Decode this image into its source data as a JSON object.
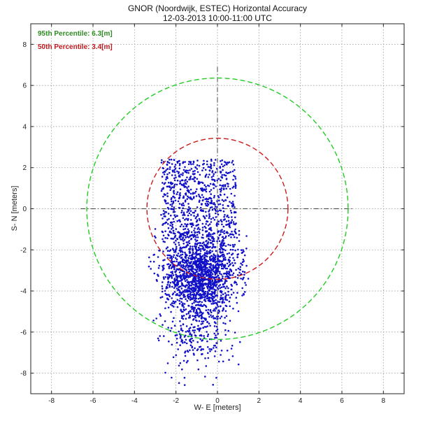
{
  "chart_data": {
    "type": "scatter",
    "title": "GNOR (Noordwijk, ESTEC) Horizontal Accuracy",
    "subtitle": "12-03-2013  10:00-11:00 UTC",
    "xlabel": "W- E [meters]",
    "ylabel": "S- N [meters]",
    "xlim": [
      -9,
      9
    ],
    "ylim": [
      -9,
      9
    ],
    "xticks": [
      -8,
      -6,
      -4,
      -2,
      0,
      2,
      4,
      6,
      8
    ],
    "yticks": [
      -8,
      -6,
      -4,
      -2,
      0,
      2,
      4,
      6,
      8
    ],
    "grid": true,
    "annotations": [
      {
        "text": "95th Percentile:  6.3[m]",
        "color": "#2e8b22"
      },
      {
        "text": "50th Percentile:  3.4[m]",
        "color": "#c0181c"
      }
    ],
    "circles": [
      {
        "radius": 6.3,
        "color": "#22cc22",
        "dash": "dashed"
      },
      {
        "radius": 3.4,
        "color": "#cc1b1b",
        "dash": "dashed"
      }
    ],
    "point_color": "#1010c8",
    "point_cloud": {
      "count": 2600,
      "x_range": [
        -4,
        1.5
      ],
      "y_range": [
        -8.6,
        2.4
      ],
      "center": [
        -0.8,
        -3.2
      ],
      "note_points": "dense cluster of positions centred south-west of origin"
    },
    "crosshair": {
      "color": "#444444",
      "style": "dash-dot"
    }
  }
}
